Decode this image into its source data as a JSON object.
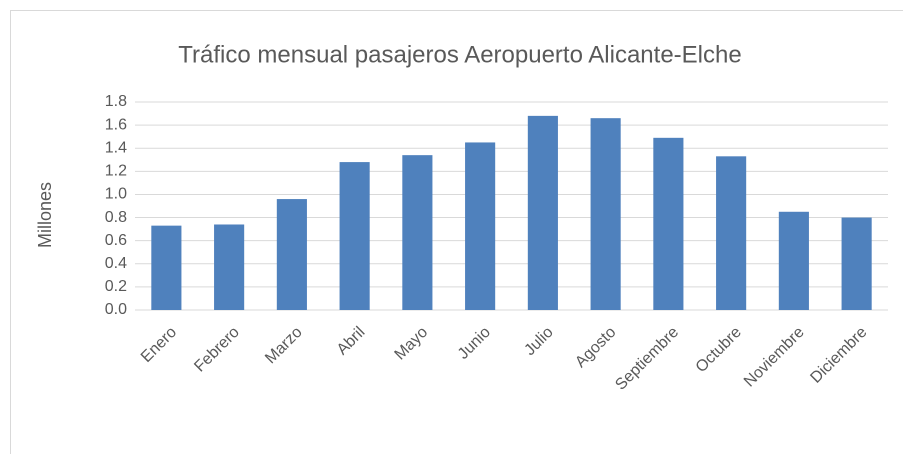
{
  "chart_data": {
    "type": "bar",
    "title": "Tráfico mensual pasajeros Aeropuerto Alicante-Elche",
    "y_label": "Millones",
    "categories": [
      "Enero",
      "Febrero",
      "Marzo",
      "Abril",
      "Mayo",
      "Junio",
      "Julio",
      "Agosto",
      "Septiembre",
      "Octubre",
      "Noviembre",
      "Diciembre"
    ],
    "values": [
      0.73,
      0.74,
      0.96,
      1.28,
      1.34,
      1.45,
      1.68,
      1.66,
      1.49,
      1.33,
      0.85,
      0.8
    ],
    "color": "#4f81bd",
    "ylim": [
      0,
      1.8
    ],
    "yticks": [
      {
        "value": 0,
        "label": "0.0"
      },
      0.2,
      0.4,
      0.6,
      0.8,
      {
        "value": 1,
        "label": "1.0"
      },
      1.2,
      1.4,
      1.6,
      1.8
    ],
    "grid": true
  }
}
